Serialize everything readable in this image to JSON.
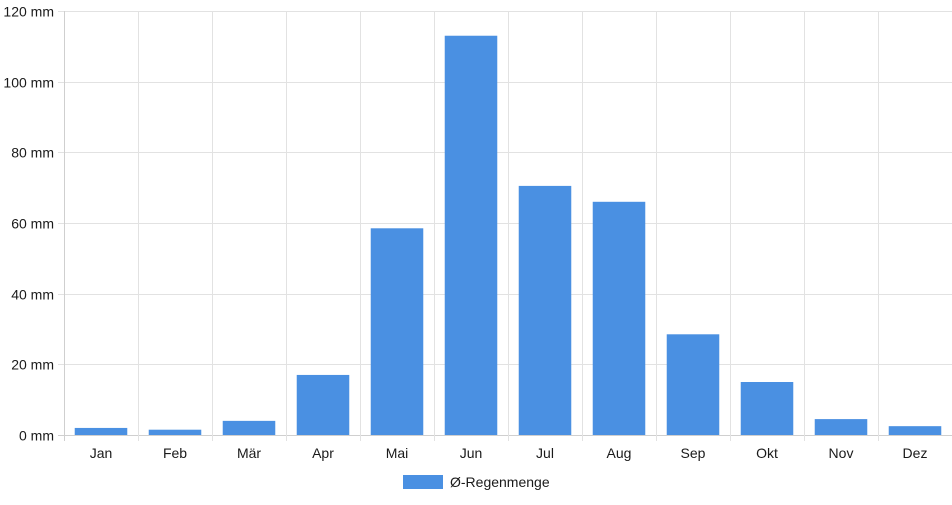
{
  "chart_data": {
    "type": "bar",
    "categories": [
      "Jan",
      "Feb",
      "Mär",
      "Apr",
      "Mai",
      "Jun",
      "Jul",
      "Aug",
      "Sep",
      "Okt",
      "Nov",
      "Dez"
    ],
    "series": [
      {
        "name": "Ø-Regenmenge",
        "values": [
          2,
          1.5,
          4,
          17,
          58.5,
          113,
          70.5,
          66,
          28.5,
          15,
          4.5,
          2.5
        ]
      }
    ],
    "y_unit": "mm",
    "ylim": [
      0,
      120
    ],
    "y_ticks": [
      0,
      20,
      40,
      60,
      80,
      100,
      120
    ],
    "grid": true,
    "legend_position": "bottom",
    "colors": {
      "bar": "#4a90e2"
    }
  },
  "legend": {
    "label": "Ø-Regenmenge"
  }
}
